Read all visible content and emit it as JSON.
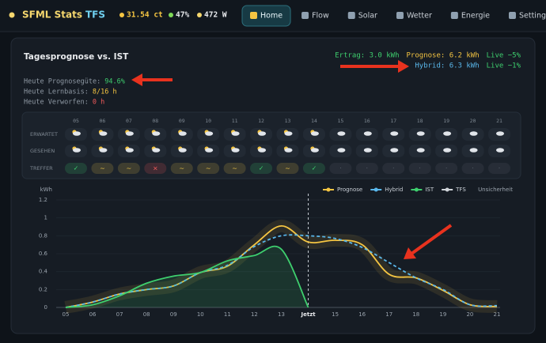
{
  "header": {
    "title": "SFML Stats",
    "title_accent": "TFS",
    "stats": [
      "31.54 ct",
      "47%",
      "472 W"
    ],
    "nav": [
      "Home",
      "Flow",
      "Solar",
      "Wetter",
      "Energie",
      "Settings"
    ],
    "active_nav": 0
  },
  "card": {
    "title": "Tagesprognose vs. IST",
    "summary": [
      [
        {
          "text": "Ertrag: 3.0 kWh",
          "color": "#3ecf6e"
        },
        {
          "text": "Prognose: 6.2 kWh",
          "color": "#f5c542"
        },
        {
          "text": "Live −5%",
          "color": "#3ecf6e"
        }
      ],
      [
        {
          "text": "Hybrid: 6.3 kWh",
          "color": "#5ab8ec"
        },
        {
          "text": "Live −1%",
          "color": "#3ecf6e"
        }
      ]
    ],
    "stats": [
      {
        "label": "Heute Prognosegüte:",
        "value": "94.6%",
        "color": "#3ecf6e"
      },
      {
        "label": "Heute Lernbasis:",
        "value": "8/16 h",
        "color": "#f5c542"
      },
      {
        "label": "Heute Verworfen:",
        "value": "0 h",
        "color": "#f05a5a"
      }
    ]
  },
  "weather": {
    "hours": [
      "05",
      "06",
      "07",
      "08",
      "09",
      "10",
      "11",
      "12",
      "13",
      "14",
      "15",
      "16",
      "17",
      "18",
      "19",
      "20",
      "21"
    ],
    "rows": [
      "ERWARTET",
      "GESEHEN",
      "TREFFER"
    ],
    "treffer": [
      "✓",
      "~",
      "~",
      "×",
      "~",
      "~",
      "~",
      "✓",
      "~",
      "✓",
      "·",
      "·",
      "·",
      "·",
      "·",
      "·",
      "·"
    ],
    "treffer_colors": [
      "#3ecf6e",
      "#e6c04a",
      "#e6c04a",
      "#f05a5a",
      "#e6c04a",
      "#e6c04a",
      "#e6c04a",
      "#3ecf6e",
      "#e6c04a",
      "#3ecf6e",
      "#5c6570",
      "#5c6570",
      "#5c6570",
      "#5c6570",
      "#5c6570",
      "#5c6570",
      "#5c6570"
    ]
  },
  "chart_data": {
    "type": "line",
    "y_label": "kWh",
    "categories": [
      "05",
      "06",
      "07",
      "08",
      "09",
      "10",
      "11",
      "12",
      "13",
      "Jetzt",
      "15",
      "16",
      "17",
      "18",
      "19",
      "20",
      "21"
    ],
    "now_index": 9,
    "series": [
      {
        "name": "Prognose",
        "color": "#f5c542",
        "values": [
          0.0,
          0.06,
          0.15,
          0.2,
          0.24,
          0.39,
          0.46,
          0.7,
          0.91,
          0.73,
          0.75,
          0.7,
          0.37,
          0.33,
          0.19,
          0.03,
          0.01
        ]
      },
      {
        "name": "Hybrid",
        "color": "#5ab8ec",
        "dashed": true,
        "values": [
          0.0,
          0.06,
          0.15,
          0.2,
          0.24,
          0.39,
          0.47,
          0.68,
          0.8,
          0.8,
          0.77,
          0.67,
          0.5,
          0.33,
          0.2,
          0.03,
          0.02
        ]
      },
      {
        "name": "IST",
        "color": "#3ecf6e",
        "area": true,
        "values": [
          0.0,
          0.03,
          0.13,
          0.27,
          0.35,
          0.39,
          0.52,
          0.58,
          0.65,
          0.0,
          null,
          null,
          null,
          null,
          null,
          null,
          null
        ]
      },
      {
        "name": "TFS",
        "color": "#d0d4d9",
        "values": [
          null,
          null,
          null,
          null,
          null,
          null,
          null,
          null,
          null,
          null,
          null,
          null,
          null,
          null,
          null,
          null,
          null
        ]
      }
    ],
    "annotation": "Unsicherheit",
    "legend": "top-right",
    "ylim": [
      0,
      1.2
    ],
    "yticks": [
      0,
      0.2,
      0.4,
      0.6,
      0.8,
      1,
      1.2
    ],
    "grid": true
  }
}
